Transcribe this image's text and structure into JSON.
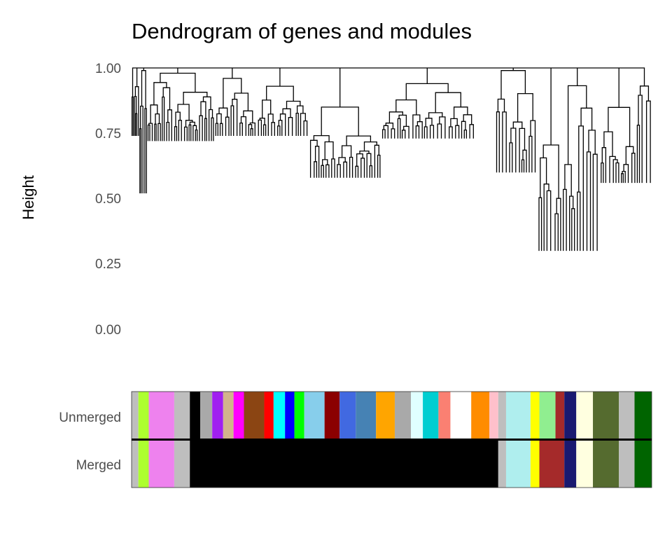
{
  "chart_data": {
    "type": "dendrogram",
    "title": "Dendrogram of genes and modules",
    "ylabel": "Height",
    "xlabel": "",
    "ylim": [
      0.0,
      1.0
    ],
    "yticks": [
      "1.00",
      "0.75",
      "0.50",
      "0.25",
      "0.00"
    ],
    "grid": false,
    "clusters": [
      {
        "x": [
          0.0,
          0.015
        ],
        "merge": 1.0,
        "min": 0.74,
        "n": 6
      },
      {
        "x": [
          0.015,
          0.03
        ],
        "merge": 0.99,
        "min": 0.52,
        "n": 5
      },
      {
        "x": [
          0.03,
          0.16
        ],
        "merge": 0.98,
        "min": 0.72,
        "n": 30
      },
      {
        "x": [
          0.16,
          0.24
        ],
        "merge": 0.96,
        "min": 0.74,
        "n": 16
      },
      {
        "x": [
          0.24,
          0.34
        ],
        "merge": 0.93,
        "min": 0.74,
        "n": 18
      },
      {
        "x": [
          0.34,
          0.48
        ],
        "merge": 0.85,
        "min": 0.58,
        "n": 26
      },
      {
        "x": [
          0.48,
          0.66
        ],
        "merge": 0.94,
        "min": 0.73,
        "n": 30
      },
      {
        "x": [
          0.7,
          0.78
        ],
        "merge": 0.99,
        "min": 0.6,
        "n": 14
      },
      {
        "x": [
          0.78,
          0.9
        ],
        "merge": 1.0,
        "min": 0.3,
        "n": 20
      },
      {
        "x": [
          0.9,
          1.0
        ],
        "merge": 1.0,
        "min": 0.56,
        "n": 18
      }
    ],
    "color_rows": [
      {
        "label": "Unmerged",
        "segments": [
          [
            "#bebebe",
            0.0,
            0.013
          ],
          [
            "#adff2f",
            0.013,
            0.033
          ],
          [
            "#ee82ee",
            0.033,
            0.082
          ],
          [
            "#bebebe",
            0.082,
            0.112
          ],
          [
            "#000000",
            0.112,
            0.132
          ],
          [
            "#a9a9a9",
            0.132,
            0.155
          ],
          [
            "#a020f0",
            0.155,
            0.176
          ],
          [
            "#d2b48c",
            0.176,
            0.196
          ],
          [
            "#ff00ff",
            0.196,
            0.216
          ],
          [
            "#8b4513",
            0.216,
            0.255
          ],
          [
            "#ff0000",
            0.255,
            0.273
          ],
          [
            "#00ffff",
            0.273,
            0.295
          ],
          [
            "#0000ff",
            0.295,
            0.313
          ],
          [
            "#00ff00",
            0.313,
            0.332
          ],
          [
            "#87ceeb",
            0.332,
            0.371
          ],
          [
            "#8b0000",
            0.371,
            0.4
          ],
          [
            "#4169e1",
            0.4,
            0.431
          ],
          [
            "#4682b4",
            0.431,
            0.47
          ],
          [
            "#ffa500",
            0.47,
            0.506
          ],
          [
            "#a9a9a9",
            0.506,
            0.537
          ],
          [
            "#e0ffff",
            0.537,
            0.56
          ],
          [
            "#00ced1",
            0.56,
            0.59
          ],
          [
            "#fa8072",
            0.59,
            0.613
          ],
          [
            "#ffffff",
            0.613,
            0.653
          ],
          [
            "#ff8c00",
            0.653,
            0.688
          ],
          [
            "#ffc0cb",
            0.688,
            0.705
          ],
          [
            "#bebebe",
            0.705,
            0.72
          ],
          [
            "#afeeee",
            0.72,
            0.767
          ],
          [
            "#ffff00",
            0.767,
            0.784
          ],
          [
            "#90ee90",
            0.784,
            0.815
          ],
          [
            "#a52a2a",
            0.815,
            0.832
          ],
          [
            "#191970",
            0.832,
            0.855
          ],
          [
            "#ffffe0",
            0.855,
            0.887
          ],
          [
            "#556b2f",
            0.887,
            0.937
          ],
          [
            "#bebebe",
            0.937,
            0.967
          ],
          [
            "#006400",
            0.967,
            1.0
          ]
        ]
      },
      {
        "label": "Merged",
        "segments": [
          [
            "#bebebe",
            0.0,
            0.013
          ],
          [
            "#adff2f",
            0.013,
            0.033
          ],
          [
            "#ee82ee",
            0.033,
            0.082
          ],
          [
            "#bebebe",
            0.082,
            0.112
          ],
          [
            "#000000",
            0.112,
            0.705
          ],
          [
            "#bebebe",
            0.705,
            0.72
          ],
          [
            "#afeeee",
            0.72,
            0.767
          ],
          [
            "#ffff00",
            0.767,
            0.784
          ],
          [
            "#a52a2a",
            0.784,
            0.832
          ],
          [
            "#191970",
            0.832,
            0.855
          ],
          [
            "#ffffe0",
            0.855,
            0.887
          ],
          [
            "#556b2f",
            0.887,
            0.937
          ],
          [
            "#bebebe",
            0.937,
            0.967
          ],
          [
            "#006400",
            0.967,
            1.0
          ]
        ]
      }
    ]
  }
}
